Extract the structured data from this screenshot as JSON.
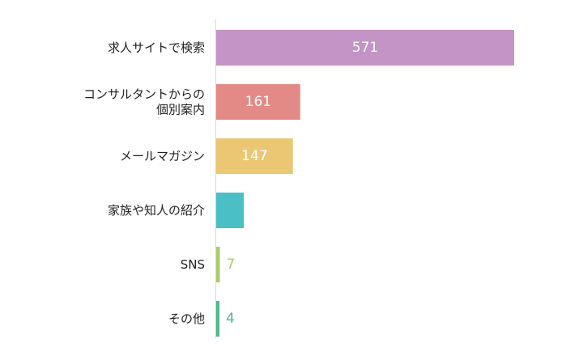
{
  "chart_data": {
    "type": "bar",
    "orientation": "horizontal",
    "categories": [
      [
        "求人サイトで検索"
      ],
      [
        "コンサルタントからの",
        "個別案内"
      ],
      [
        "メールマガジン"
      ],
      [
        "家族や知人の紹介"
      ],
      [
        "SNS"
      ],
      [
        "その他"
      ]
    ],
    "values": [
      571,
      161,
      147,
      53,
      7,
      4
    ],
    "colors": [
      "#c394c5",
      "#e38a86",
      "#ebc774",
      "#4bbfc6",
      "#a6cd6a",
      "#4fb98c"
    ],
    "value_label_colors": [
      "#ffffff",
      "#ffffff",
      "#ffffff",
      "#ffffff",
      "#a6cd6a",
      "#4fb98c"
    ],
    "xlim": [
      0,
      571
    ],
    "grid": false,
    "legend": "none"
  }
}
